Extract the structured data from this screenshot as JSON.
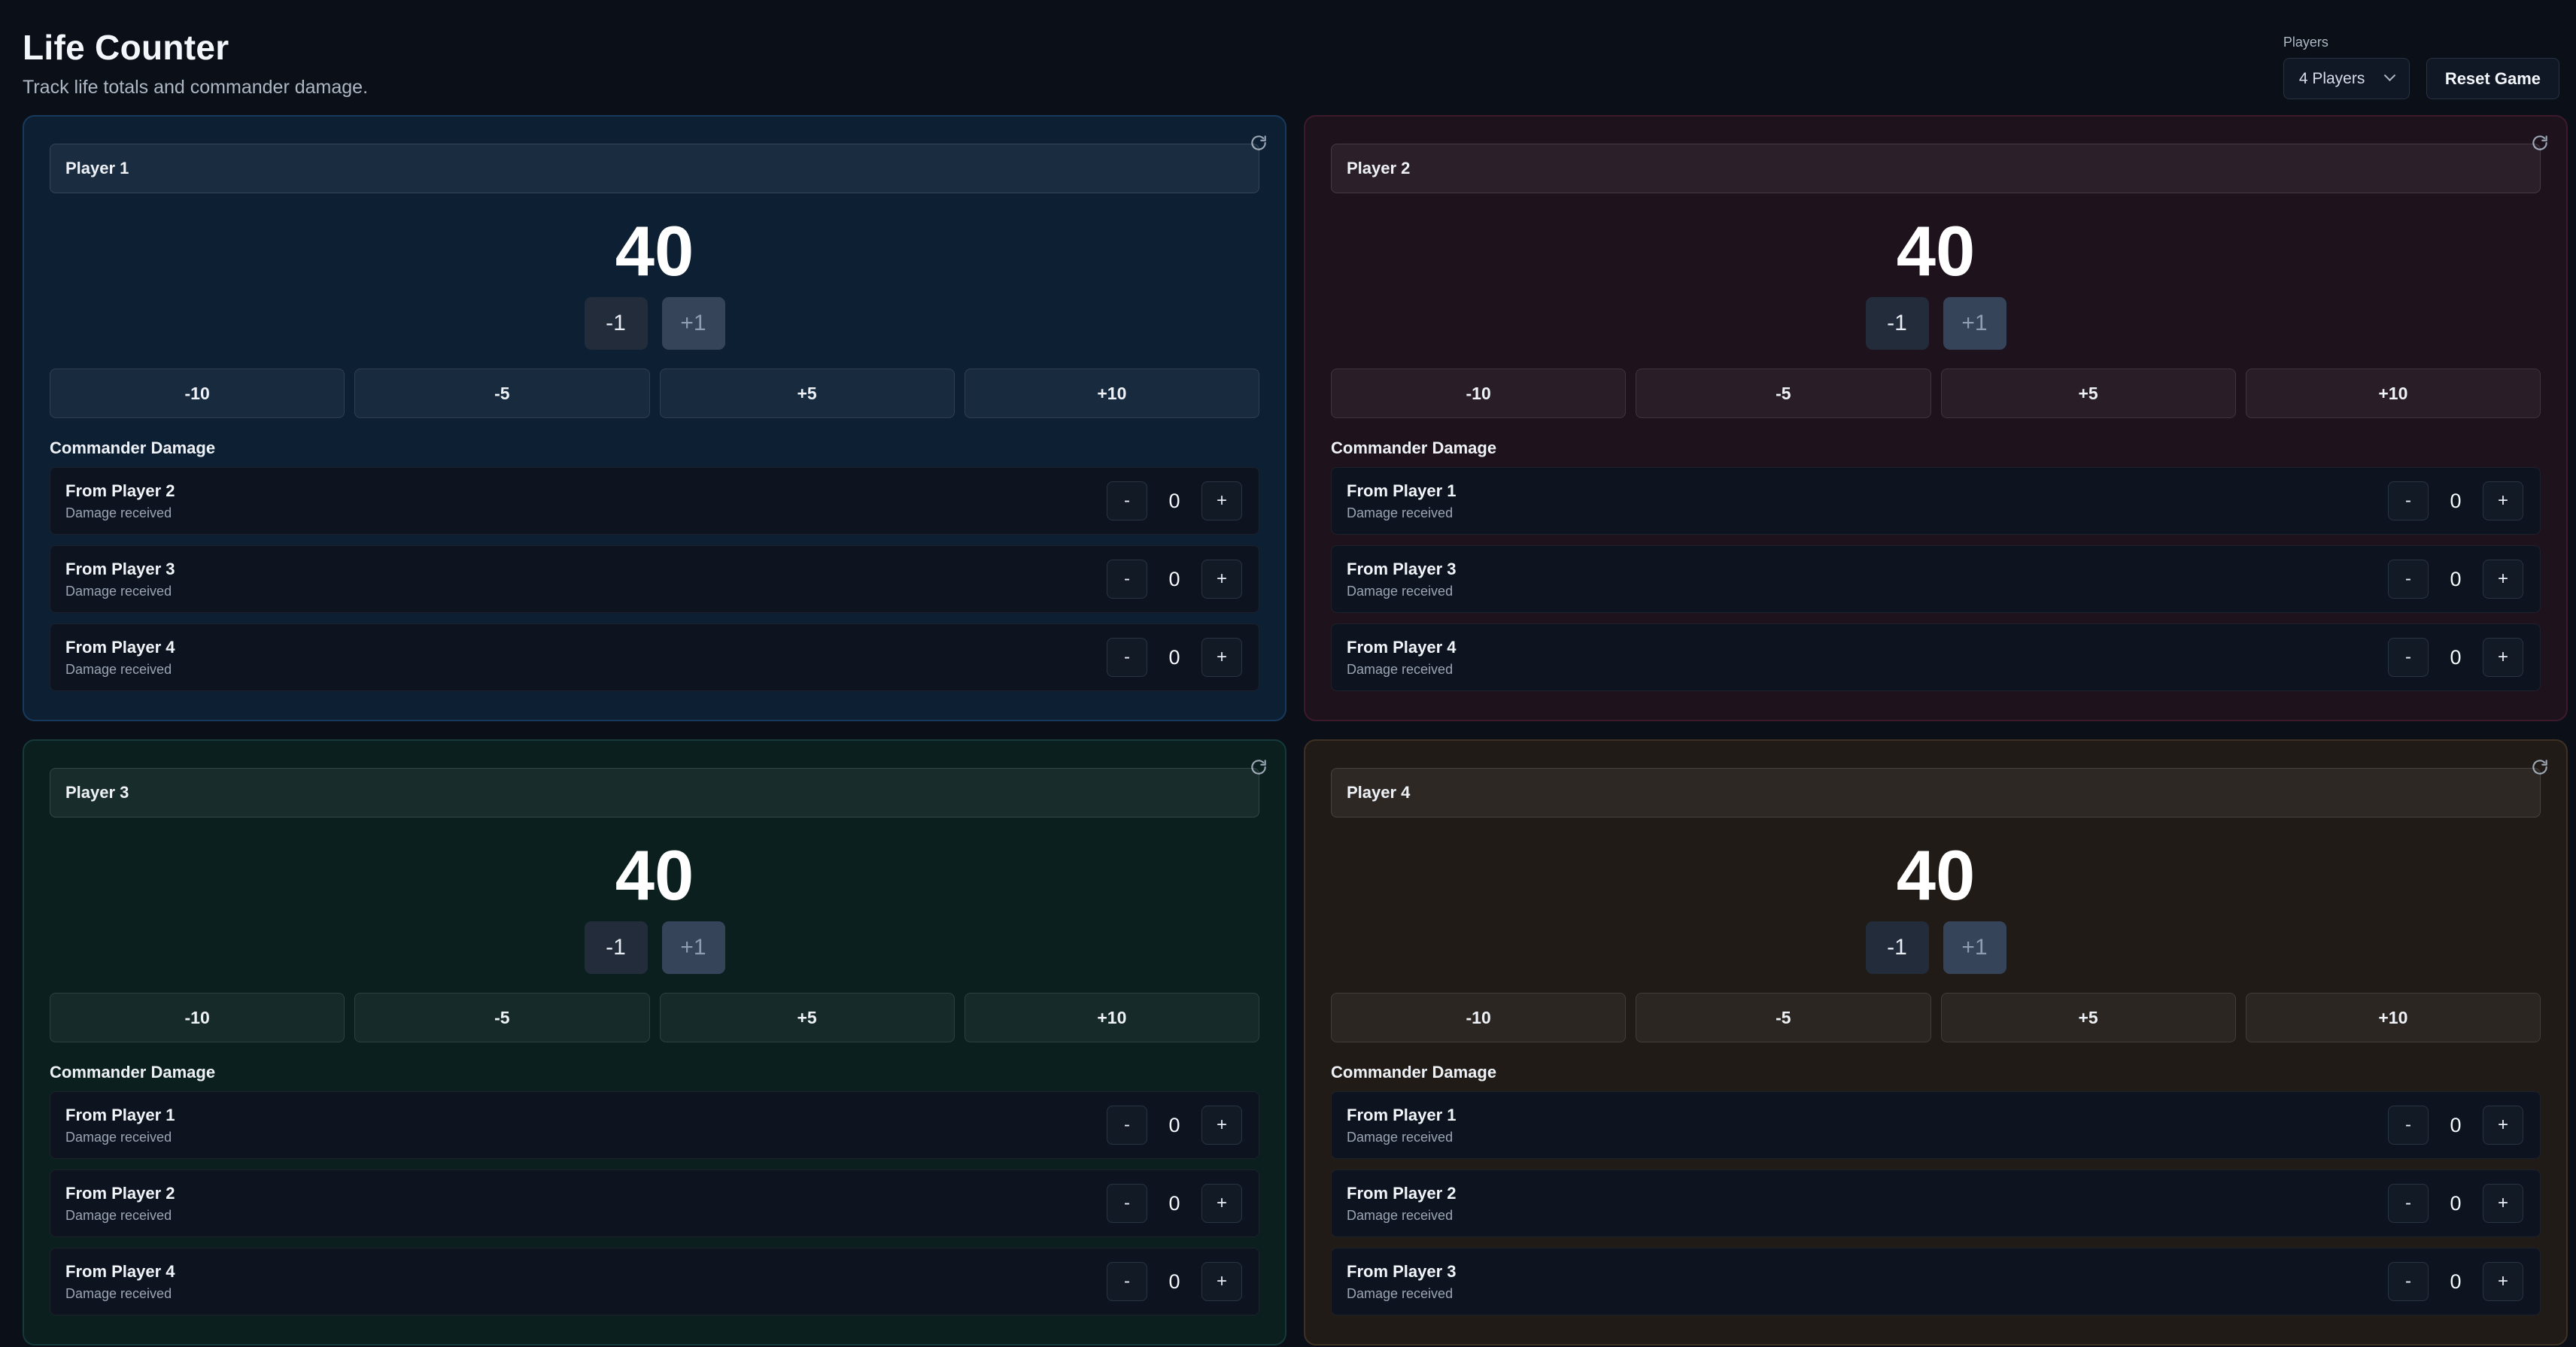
{
  "header": {
    "title": "Life Counter",
    "subtitle": "Track life totals and commander damage."
  },
  "controls": {
    "players_label": "Players",
    "players_selected": "4 Players",
    "reset_game_label": "Reset Game"
  },
  "labels": {
    "minus_one": "-1",
    "plus_one": "+1",
    "minus_ten": "-10",
    "minus_five": "-5",
    "plus_five": "+5",
    "plus_ten": "+10",
    "commander_damage": "Commander Damage",
    "damage_received": "Damage received",
    "dec": "-",
    "inc": "+"
  },
  "colors": {
    "player1": "#0c1f33",
    "player2": "#1e121d",
    "player3": "#0b1f1f",
    "player4": "#201b17"
  },
  "players": [
    {
      "name": "Player 1",
      "life": "40",
      "commander": [
        {
          "from": "From Player 2",
          "value": "0"
        },
        {
          "from": "From Player 3",
          "value": "0"
        },
        {
          "from": "From Player 4",
          "value": "0"
        }
      ]
    },
    {
      "name": "Player 2",
      "life": "40",
      "commander": [
        {
          "from": "From Player 1",
          "value": "0"
        },
        {
          "from": "From Player 3",
          "value": "0"
        },
        {
          "from": "From Player 4",
          "value": "0"
        }
      ]
    },
    {
      "name": "Player 3",
      "life": "40",
      "commander": [
        {
          "from": "From Player 1",
          "value": "0"
        },
        {
          "from": "From Player 2",
          "value": "0"
        },
        {
          "from": "From Player 4",
          "value": "0"
        }
      ]
    },
    {
      "name": "Player 4",
      "life": "40",
      "commander": [
        {
          "from": "From Player 1",
          "value": "0"
        },
        {
          "from": "From Player 2",
          "value": "0"
        },
        {
          "from": "From Player 3",
          "value": "0"
        }
      ]
    }
  ]
}
